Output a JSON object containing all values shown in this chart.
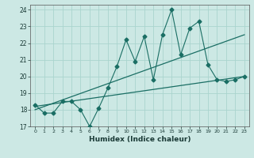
{
  "xlabel": "Humidex (Indice chaleur)",
  "ylabel": "",
  "bg_color": "#cce8e4",
  "line_color": "#1a6e64",
  "grid_color": "#aad4ce",
  "xlim": [
    -0.5,
    23.5
  ],
  "ylim": [
    17,
    24.3
  ],
  "yticks": [
    17,
    18,
    19,
    20,
    21,
    22,
    23,
    24
  ],
  "xticks": [
    0,
    1,
    2,
    3,
    4,
    5,
    6,
    7,
    8,
    9,
    10,
    11,
    12,
    13,
    14,
    15,
    16,
    17,
    18,
    19,
    20,
    21,
    22,
    23
  ],
  "series1_x": [
    0,
    1,
    2,
    3,
    4,
    5,
    6,
    7,
    8,
    9,
    10,
    11,
    12,
    13,
    14,
    15,
    16,
    17,
    18,
    19,
    20,
    21,
    22,
    23
  ],
  "series1_y": [
    18.3,
    17.8,
    17.8,
    18.5,
    18.5,
    18.0,
    17.0,
    18.1,
    19.3,
    20.6,
    22.2,
    20.9,
    22.4,
    19.8,
    22.5,
    24.0,
    21.3,
    22.9,
    23.3,
    20.7,
    19.8,
    19.7,
    19.8,
    20.0
  ],
  "series2_x": [
    0,
    23
  ],
  "series2_y": [
    18.0,
    22.5
  ],
  "series3_x": [
    0,
    23
  ],
  "series3_y": [
    18.2,
    20.0
  ],
  "marker_size": 2.5
}
